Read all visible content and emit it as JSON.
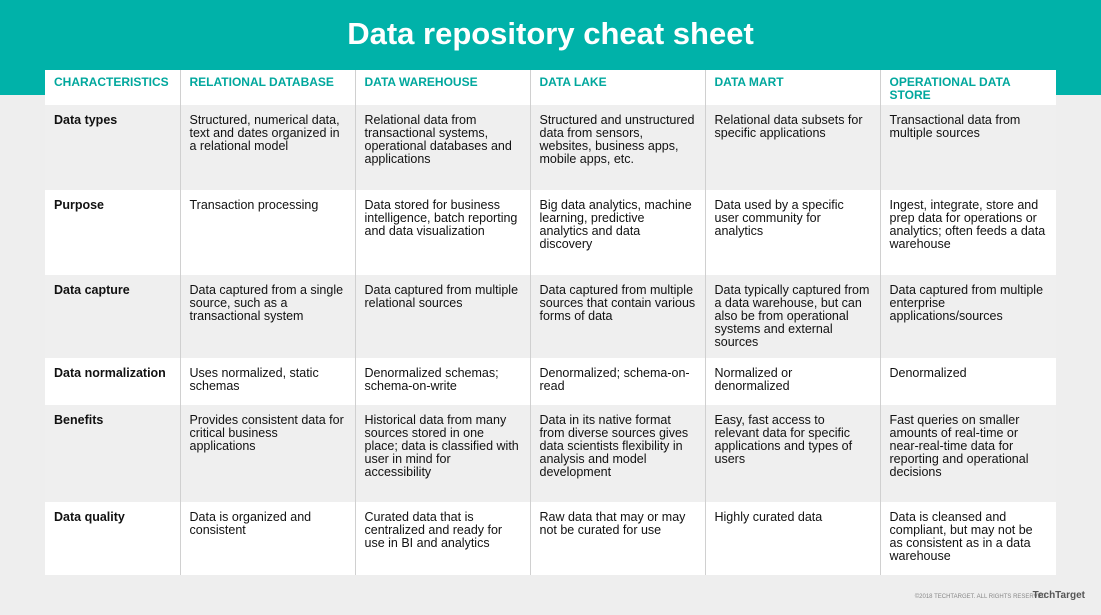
{
  "header": {
    "title": "Data repository cheat sheet"
  },
  "table": {
    "columns": [
      "CHARACTERISTICS",
      "RELATIONAL DATABASE",
      "DATA WAREHOUSE",
      "DATA LAKE",
      "DATA MART",
      "OPERATIONAL DATA STORE"
    ],
    "rows": [
      [
        "Data types",
        "Structured, numerical data, text and dates organized in a relational model",
        "Relational data from transactional systems, operational databases and applications",
        "Structured and unstructured data from sensors, websites, business apps, mobile apps, etc.",
        "Relational data subsets for specific applications",
        "Transactional data from multiple sources"
      ],
      [
        "Purpose",
        "Transaction processing",
        "Data stored for business intelligence, batch reporting and data visualization",
        "Big data analytics, machine learning, predictive analytics and data discovery",
        "Data used by a specific user community for analytics",
        "Ingest, integrate, store and prep data for operations or analytics; often feeds a data warehouse"
      ],
      [
        "Data capture",
        "Data captured from a single source, such as a transactional system",
        "Data captured from multiple relational sources",
        "Data captured from multiple sources that contain various forms of data",
        "Data typically captured from a data warehouse, but can also be from operational systems and external sources",
        "Data captured from multiple enterprise applications/sources"
      ],
      [
        "Data normalization",
        "Uses normalized, static schemas",
        "Denormalized schemas; schema-on-write",
        "Denormalized; schema-on-read",
        "Normalized or denormalized",
        "Denormalized"
      ],
      [
        "Benefits",
        "Provides consistent data for critical business applications",
        "Historical data from many sources stored in one place; data is classified with user in mind for accessibility",
        "Data in its native format from diverse sources gives data scientists flexibility in analysis and model development",
        "Easy, fast access to relevant data for specific applications and types of users",
        "Fast queries on smaller amounts of real-time or near-real-time data for reporting and operational decisions"
      ],
      [
        "Data quality",
        "Data is organized and consistent",
        "Curated data that is centralized and ready for use in BI and analytics",
        "Raw data that may or may not be curated for use",
        "Highly curated data",
        "Data is cleansed and compliant, but may not be as consistent as in a data warehouse"
      ]
    ]
  },
  "footer": {
    "copyright": "©2018 TECHTARGET. ALL RIGHTS RESERVED",
    "logo": "TechTarget"
  }
}
